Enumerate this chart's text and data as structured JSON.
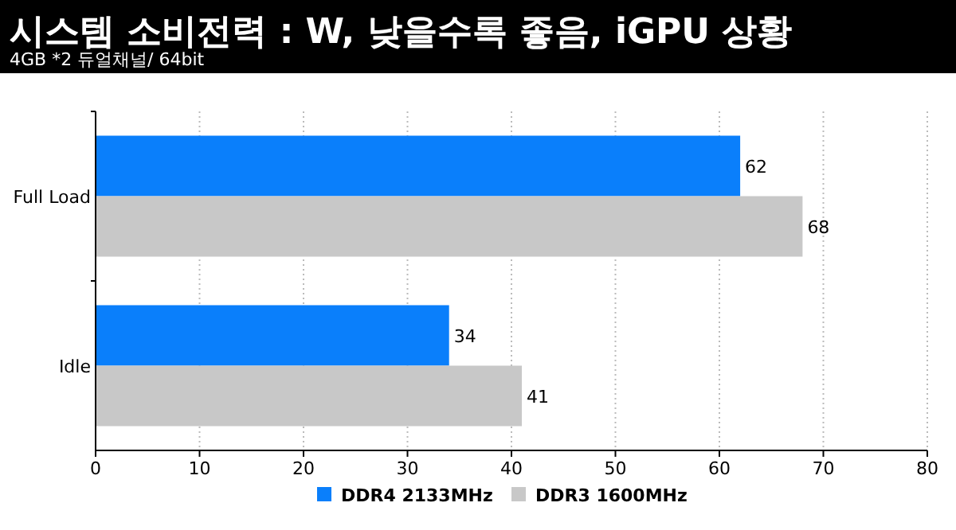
{
  "chart_data": {
    "type": "bar",
    "orientation": "horizontal",
    "title": "시스템 소비전력 : W, 낮을수록 좋음, iGPU 상황",
    "subtitle": "4GB *2 듀얼채널/ 64bit",
    "categories": [
      "Full Load",
      "Idle"
    ],
    "series": [
      {
        "name": "DDR4 2133MHz",
        "color": "#0a7ffb",
        "values": [
          62,
          34
        ]
      },
      {
        "name": "DDR3 1600MHz",
        "color": "#c8c8c8",
        "values": [
          68,
          41
        ]
      }
    ],
    "xlim": [
      0,
      80
    ],
    "xticks": [
      0,
      10,
      20,
      30,
      40,
      50,
      60,
      70,
      80
    ],
    "grid": "x",
    "legend": "bottom",
    "data_labels": true
  }
}
